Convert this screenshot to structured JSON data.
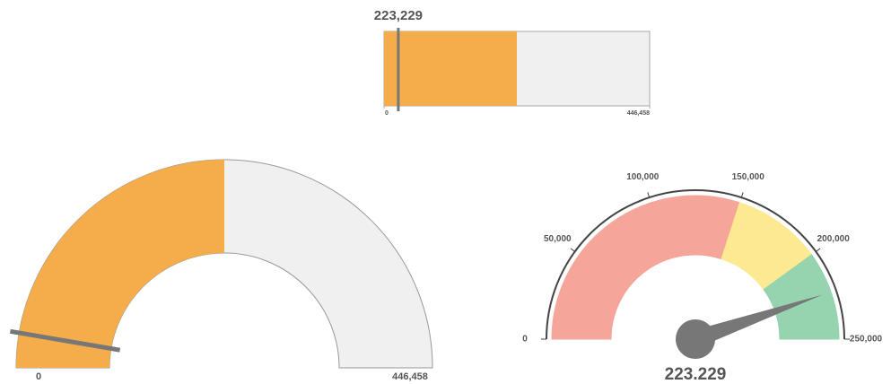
{
  "chart_data": [
    {
      "type": "bullet",
      "values": [
        223229
      ],
      "value_labels": [
        "223,229"
      ],
      "target": 24000,
      "xlim": [
        0,
        446458
      ],
      "xticks": [
        0,
        {
          "value": 446458,
          "label": "446,458"
        }
      ],
      "color": "#f4ad4a",
      "track_color": "#f0f0f0",
      "marker_color": "#777777"
    },
    {
      "type": "gauge",
      "value": 223229,
      "target": 24000,
      "ylim": [
        0,
        446458
      ],
      "yticks": [
        0,
        {
          "value": 446458,
          "label": "446,458"
        }
      ],
      "color": "#f4ad4a",
      "track_color": "#f0f0f0",
      "marker_color": "#777777"
    },
    {
      "type": "speedometer",
      "value": 223229,
      "value_label": "223.229",
      "ylim": [
        0,
        250000
      ],
      "yticks": [
        0,
        {
          "value": 50000,
          "label": "50,000"
        },
        {
          "value": 100000,
          "label": "100,000"
        },
        {
          "value": 150000,
          "label": "150,000"
        },
        {
          "value": 200000,
          "label": "200,000"
        },
        {
          "value": 250000,
          "label": "250,000"
        }
      ],
      "bands": [
        {
          "from": 0,
          "to": 150000,
          "color": "#f5a59a"
        },
        {
          "from": 150000,
          "to": 200000,
          "color": "#fde992"
        },
        {
          "from": 200000,
          "to": 250000,
          "color": "#96d4b0"
        }
      ],
      "needle_color": "#777777"
    }
  ]
}
